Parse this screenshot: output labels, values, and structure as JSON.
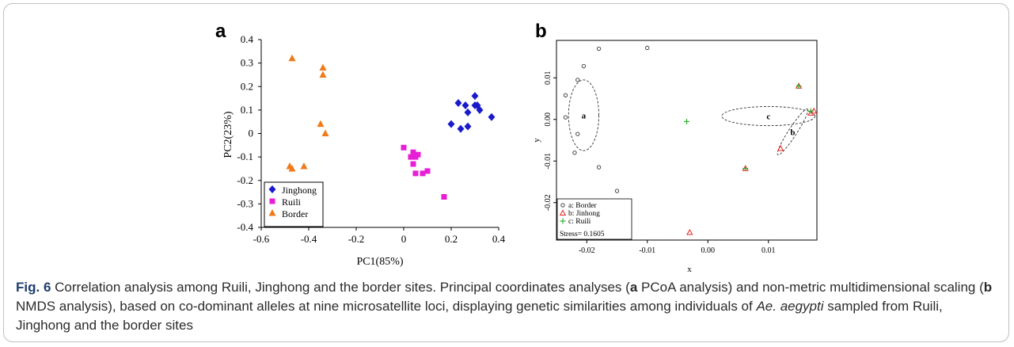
{
  "colors": {
    "jinghong": "#1a1acc",
    "ruili": "#e61fd6",
    "border": "#f07a1a",
    "nmds_triangle": "#e82020",
    "nmds_cross": "#22aa22",
    "nmds_circle": "#333333"
  },
  "chart_data": [
    {
      "type": "scatter",
      "panel_label": "a",
      "xlabel": "PC1(85%)",
      "ylabel": "PC2(23%)",
      "xlim": [
        -0.6,
        0.4
      ],
      "ylim": [
        -0.4,
        0.4
      ],
      "xticks": [
        "-0.6",
        "-0.4",
        "-0.2",
        "0",
        "0.2",
        "0.4"
      ],
      "xtick_values": [
        -0.6,
        -0.4,
        -0.2,
        0,
        0.2,
        0.4
      ],
      "yticks": [
        "-0.4",
        "-0.3",
        "-0.2",
        "-0.1",
        "0",
        "0.1",
        "0.2",
        "0.3",
        "0.4"
      ],
      "ytick_values": [
        -0.4,
        -0.3,
        -0.2,
        -0.1,
        0,
        0.1,
        0.2,
        0.3,
        0.4
      ],
      "legend_position": "bottom-left",
      "series": [
        {
          "name": "Jinghong",
          "marker": "diamond",
          "color": "#1a1acc",
          "points": [
            [
              0.2,
              0.04
            ],
            [
              0.23,
              0.13
            ],
            [
              0.24,
              0.02
            ],
            [
              0.26,
              0.12
            ],
            [
              0.27,
              0.09
            ],
            [
              0.27,
              0.03
            ],
            [
              0.3,
              0.16
            ],
            [
              0.3,
              0.12
            ],
            [
              0.31,
              0.12
            ],
            [
              0.32,
              0.1
            ],
            [
              0.37,
              0.07
            ]
          ]
        },
        {
          "name": "Ruili",
          "marker": "square",
          "color": "#e61fd6",
          "points": [
            [
              0.0,
              -0.06
            ],
            [
              0.03,
              -0.1
            ],
            [
              0.04,
              -0.08
            ],
            [
              0.04,
              -0.13
            ],
            [
              0.05,
              -0.1
            ],
            [
              0.05,
              -0.17
            ],
            [
              0.06,
              -0.09
            ],
            [
              0.08,
              -0.17
            ],
            [
              0.1,
              -0.16
            ],
            [
              0.17,
              -0.27
            ]
          ]
        },
        {
          "name": "Border",
          "marker": "triangle",
          "color": "#f07a1a",
          "points": [
            [
              -0.47,
              0.32
            ],
            [
              -0.34,
              0.28
            ],
            [
              -0.34,
              0.25
            ],
            [
              -0.35,
              0.04
            ],
            [
              -0.33,
              0.0
            ],
            [
              -0.48,
              -0.14
            ],
            [
              -0.47,
              -0.15
            ],
            [
              -0.42,
              -0.14
            ]
          ]
        }
      ]
    },
    {
      "type": "scatter",
      "panel_label": "b",
      "xlabel": "x",
      "ylabel": "y",
      "xlim": [
        -0.025,
        0.018
      ],
      "ylim": [
        -0.029,
        0.019
      ],
      "xticks": [
        "-0.02",
        "-0.01",
        "0.00",
        "0.01"
      ],
      "xtick_values": [
        -0.02,
        -0.01,
        0.0,
        0.01
      ],
      "yticks": [
        "-0.02",
        "-0.01",
        "0.00",
        "0.01"
      ],
      "ytick_values": [
        -0.02,
        -0.01,
        0.0,
        0.01
      ],
      "legend_position": "bottom-left",
      "stress_text": "Stress= 0.1605",
      "series": [
        {
          "name": "a: Border",
          "marker": "circle",
          "color": "#333333",
          "points": [
            [
              -0.018,
              0.017
            ],
            [
              -0.01,
              0.0172
            ],
            [
              -0.0205,
              0.0128
            ],
            [
              -0.0215,
              0.0095
            ],
            [
              -0.0235,
              0.0058
            ],
            [
              -0.0235,
              0.0005
            ],
            [
              -0.0215,
              -0.0035
            ],
            [
              -0.022,
              -0.008
            ],
            [
              -0.018,
              -0.0115
            ],
            [
              -0.015,
              -0.0172
            ]
          ]
        },
        {
          "name": "b: Jinhong",
          "marker": "triangle-open",
          "color": "#e82020",
          "points": [
            [
              0.015,
              0.008
            ],
            [
              0.017,
              0.0015
            ],
            [
              0.0175,
              0.002
            ],
            [
              0.012,
              -0.007
            ],
            [
              0.0062,
              -0.0118
            ],
            [
              -0.003,
              -0.0272
            ]
          ]
        },
        {
          "name": "c: Ruili",
          "marker": "plus",
          "color": "#22aa22",
          "points": [
            [
              -0.0035,
              -0.0005
            ],
            [
              0.015,
              0.008
            ],
            [
              0.017,
              0.002
            ],
            [
              0.0062,
              -0.0118
            ]
          ]
        }
      ],
      "ellipses": [
        {
          "label": "a",
          "cx": -0.0205,
          "cy": 0.001,
          "rx": 0.0025,
          "ry": 0.0085,
          "angle": 0
        },
        {
          "label": "c",
          "cx": 0.01,
          "cy": 0.0008,
          "rx": 0.0077,
          "ry": 0.0023,
          "angle": 0
        },
        {
          "label": "b",
          "cx": 0.014,
          "cy": -0.003,
          "rx": 0.0045,
          "ry": 0.001,
          "angle": 57
        }
      ]
    }
  ],
  "caption": {
    "fig_label": "Fig. 6",
    "s1": "Correlation analysis among Ruili, Jinghong and the border sites. Principal coordinates analyses (",
    "bold_a": "a",
    "s2": " PCoA analysis) and non-metric multidimensional scaling (",
    "bold_b": "b",
    "s3": " NMDS analysis), based on co-dominant alleles at nine microsatellite loci, displaying genetic similarities among individuals of ",
    "species": "Ae. aegypti",
    "s4": " sampled from Ruili, Jinghong and the border sites"
  }
}
